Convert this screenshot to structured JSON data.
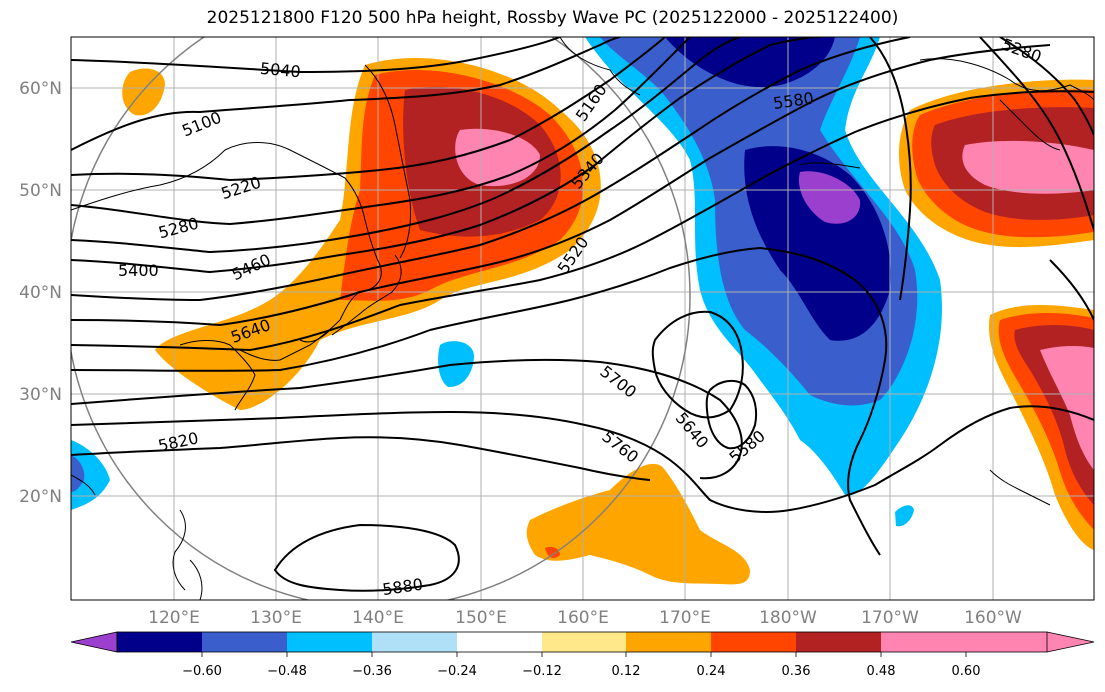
{
  "title": "2025121800 F120 500 hPa height, Rossby Wave PC (2025122000 - 2025122400)",
  "lat_labels": [
    "60°N",
    "50°N",
    "40°N",
    "30°N",
    "20°N"
  ],
  "lon_labels": [
    "120°E",
    "130°E",
    "140°E",
    "150°E",
    "160°E",
    "170°E",
    "180°W",
    "170°W",
    "160°W"
  ],
  "contour_labels": [
    "5040",
    "5100",
    "5220",
    "5280",
    "5400",
    "5460",
    "5640",
    "5820",
    "5880",
    "5160",
    "5340",
    "5520",
    "5580",
    "5280",
    "5700",
    "5640",
    "5580",
    "5760"
  ],
  "colorbar": {
    "ticks": [
      "−0.60",
      "−0.48",
      "−0.36",
      "−0.24",
      "−0.12",
      "0.12",
      "0.24",
      "0.36",
      "0.48",
      "0.60"
    ],
    "colors": [
      "#9b3fce",
      "#00008b",
      "#3a5fcd",
      "#00bfff",
      "#b0e0f8",
      "#ffffff",
      "#ffe88a",
      "#ffa500",
      "#ff4500",
      "#b22222",
      "#ff85b0"
    ]
  }
}
